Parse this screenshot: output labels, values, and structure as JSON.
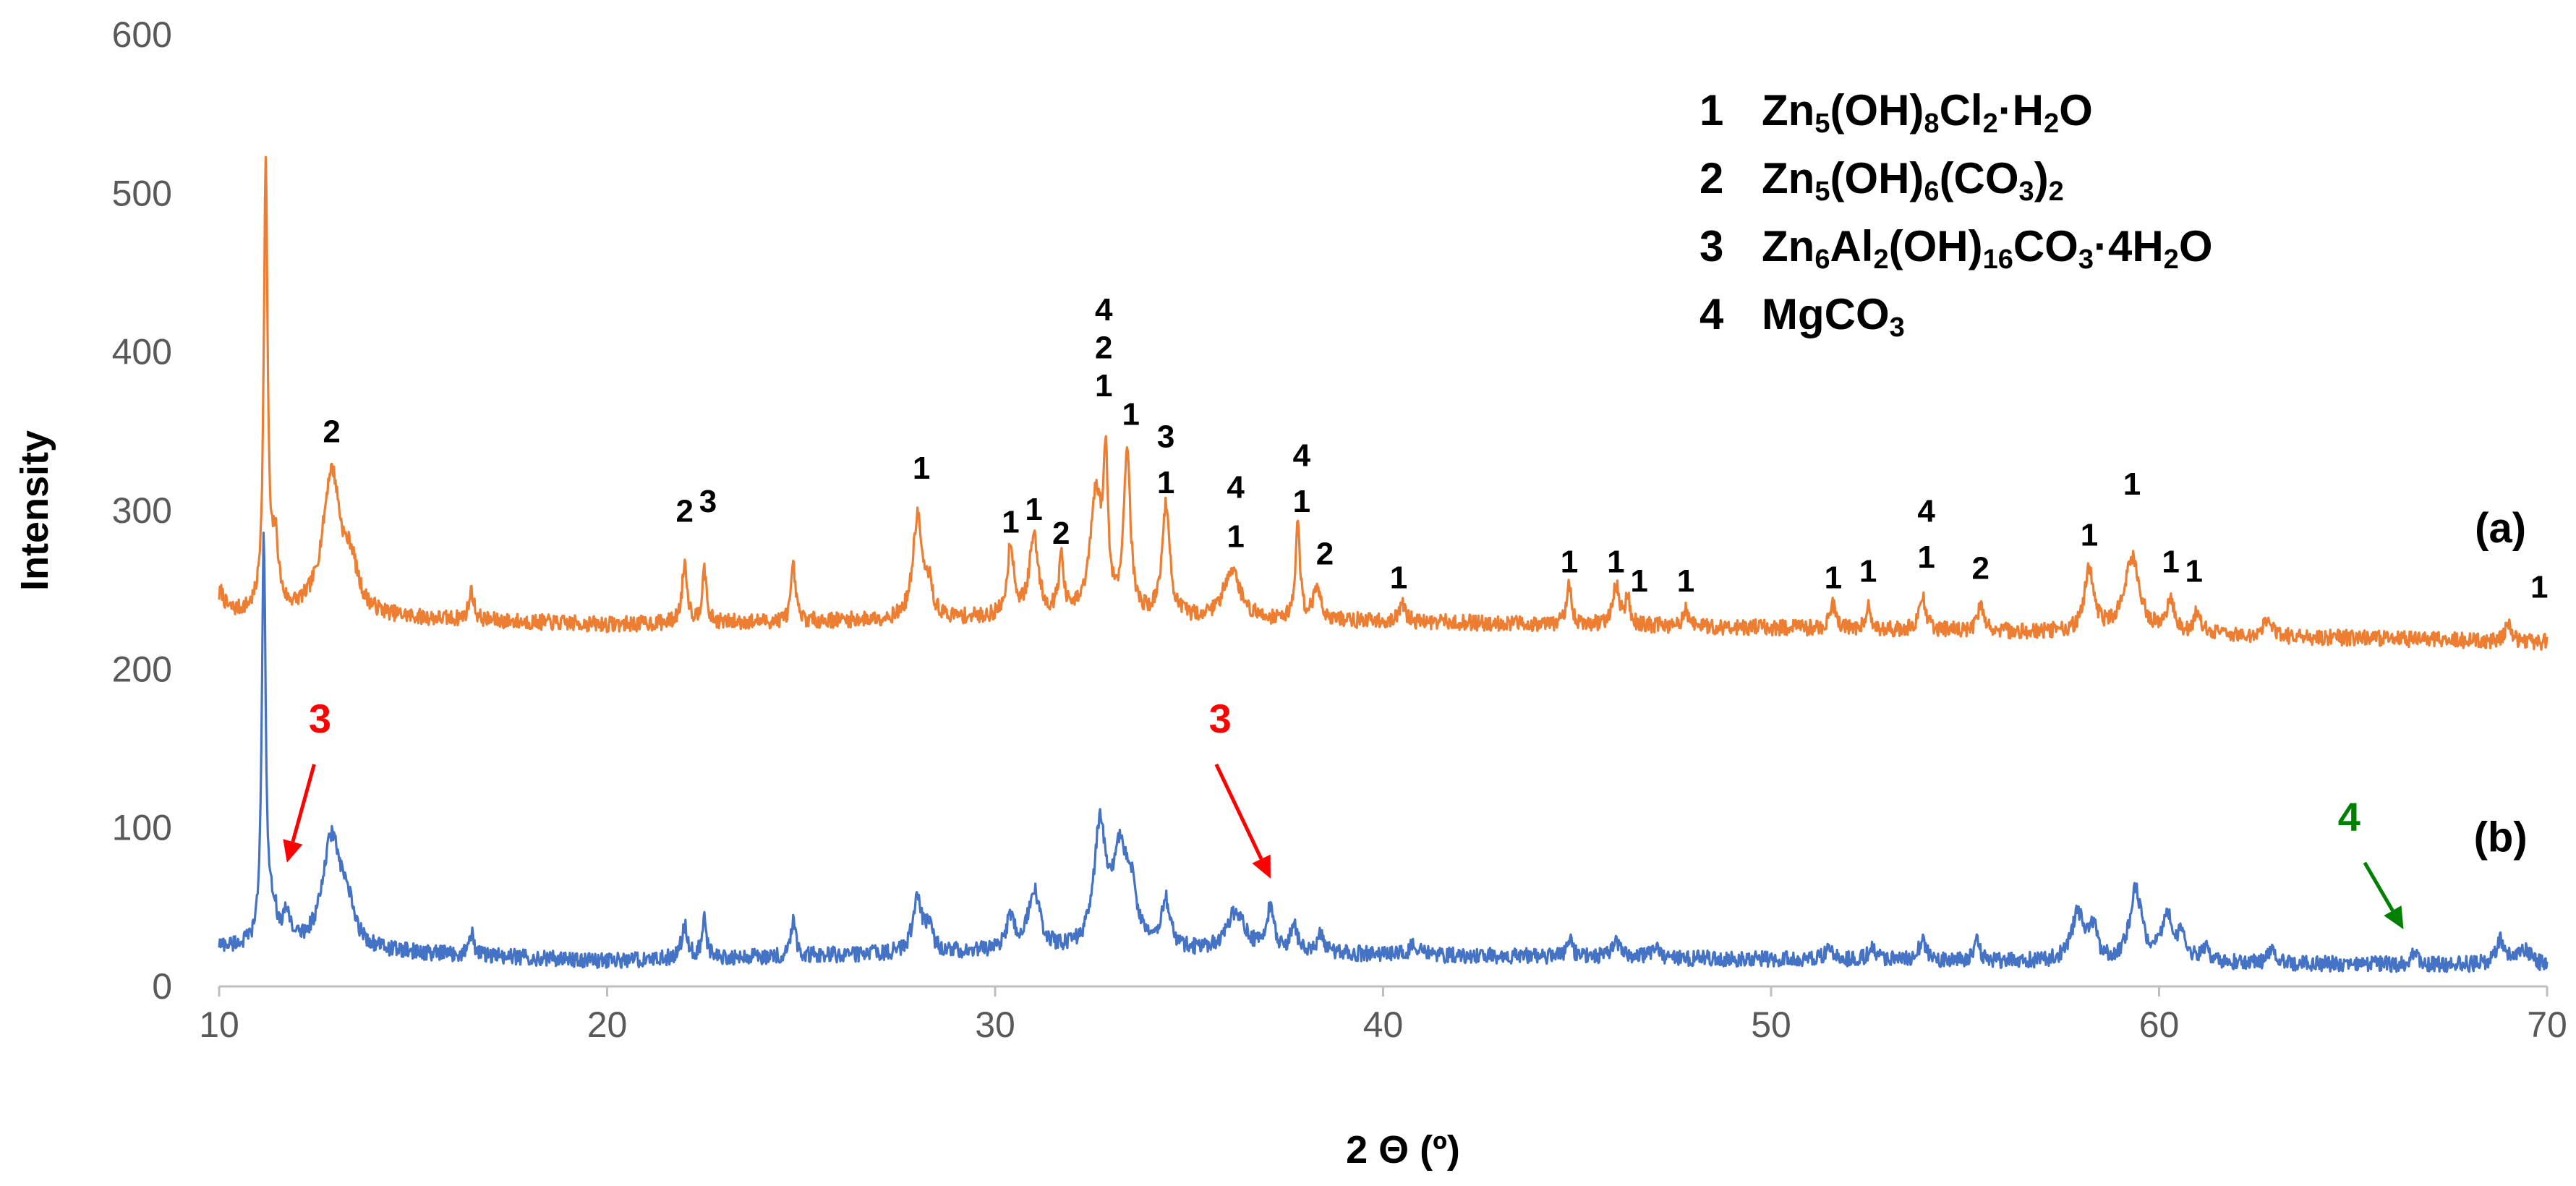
{
  "chart_data": {
    "type": "line",
    "title": "",
    "xlabel": "2 Θ (º)",
    "ylabel": "Intensity",
    "xlim": [
      10,
      70
    ],
    "ylim": [
      0,
      600
    ],
    "x_ticks": [
      "10",
      "20",
      "30",
      "40",
      "50",
      "60",
      "70"
    ],
    "y_ticks": [
      "0",
      "100",
      "200",
      "300",
      "400",
      "500",
      "600"
    ],
    "grid": false,
    "legend": [
      {
        "num": "1",
        "formula": "Zn<sub>5</sub>(OH)<sub>8</sub>Cl<sub>2</sub>·H<sub>2</sub>O",
        "text": "Zn5(OH)8Cl2·H2O"
      },
      {
        "num": "2",
        "formula": "Zn<sub>5</sub>(OH)<sub>6</sub>(CO<sub>3</sub>)<sub>2</sub>",
        "text": "Zn5(OH)6(CO3)2"
      },
      {
        "num": "3",
        "formula": "Zn<sub>6</sub>Al<sub>2</sub>(OH)<sub>16</sub>CO<sub>3</sub>·4H<sub>2</sub>O",
        "text": "Zn6Al2(OH)16CO3·4H2O"
      },
      {
        "num": "4",
        "formula": "MgCO<sub>3</sub>",
        "text": "MgCO3"
      }
    ],
    "series": [
      {
        "name": "(a)",
        "color": "#ED7D31",
        "label_at": [
          68.8,
          280
        ],
        "baseline": [
          [
            10,
            235
          ],
          [
            20,
            228
          ],
          [
            30,
            232
          ],
          [
            40,
            230
          ],
          [
            50,
            226
          ],
          [
            60,
            222
          ],
          [
            70,
            217
          ]
        ],
        "peaks": [
          [
            10.05,
            12,
            0.1
          ],
          [
            11.2,
            278,
            0.06
          ],
          [
            11.45,
            40,
            0.1
          ],
          [
            12.9,
            90,
            0.28
          ],
          [
            13.4,
            25,
            0.2
          ],
          [
            16.5,
            18,
            0.08
          ],
          [
            22.0,
            38,
            0.08
          ],
          [
            22.5,
            36,
            0.06
          ],
          [
            24.8,
            34,
            0.07
          ],
          [
            28.0,
            65,
            0.14
          ],
          [
            28.3,
            18,
            0.1
          ],
          [
            30.4,
            45,
            0.1
          ],
          [
            31.0,
            50,
            0.14
          ],
          [
            31.7,
            35,
            0.08
          ],
          [
            32.6,
            75,
            0.18
          ],
          [
            32.85,
            85,
            0.07
          ],
          [
            33.4,
            105,
            0.1
          ],
          [
            34.4,
            70,
            0.12
          ],
          [
            36.1,
            32,
            0.25
          ],
          [
            37.8,
            60,
            0.07
          ],
          [
            38.3,
            20,
            0.12
          ],
          [
            40.5,
            12,
            0.08
          ],
          [
            44.8,
            25,
            0.07
          ],
          [
            46.0,
            25,
            0.1
          ],
          [
            46.3,
            18,
            0.07
          ],
          [
            47.8,
            12,
            0.07
          ],
          [
            51.6,
            15,
            0.1
          ],
          [
            52.5,
            16,
            0.07
          ],
          [
            53.9,
            22,
            0.1
          ],
          [
            55.4,
            15,
            0.1
          ],
          [
            58.2,
            40,
            0.14
          ],
          [
            59.3,
            48,
            0.24
          ],
          [
            60.3,
            22,
            0.1
          ],
          [
            61.0,
            15,
            0.1
          ],
          [
            62.8,
            12,
            0.1
          ],
          [
            69.0,
            10,
            0.1
          ]
        ],
        "noise": 5
      },
      {
        "name": "(b)",
        "color": "#4472C4",
        "label_at": [
          68.8,
          85
        ],
        "baseline": [
          [
            10,
            25
          ],
          [
            20,
            16
          ],
          [
            30,
            22
          ],
          [
            40,
            20
          ],
          [
            50,
            17
          ],
          [
            60,
            15
          ],
          [
            70,
            13
          ]
        ],
        "peaks": [
          [
            11.15,
            255,
            0.06
          ],
          [
            11.4,
            20,
            0.1
          ],
          [
            11.75,
            18,
            0.12
          ],
          [
            12.9,
            70,
            0.28
          ],
          [
            13.3,
            20,
            0.2
          ],
          [
            16.5,
            14,
            0.08
          ],
          [
            22.0,
            20,
            0.1
          ],
          [
            22.5,
            25,
            0.07
          ],
          [
            24.8,
            25,
            0.07
          ],
          [
            28.0,
            35,
            0.14
          ],
          [
            28.3,
            15,
            0.1
          ],
          [
            30.4,
            20,
            0.12
          ],
          [
            31.0,
            38,
            0.18
          ],
          [
            32.7,
            75,
            0.18
          ],
          [
            33.2,
            55,
            0.2
          ],
          [
            33.5,
            35,
            0.18
          ],
          [
            34.4,
            30,
            0.14
          ],
          [
            36.2,
            25,
            0.3
          ],
          [
            37.1,
            28,
            0.1
          ],
          [
            37.7,
            18,
            0.1
          ],
          [
            38.4,
            12,
            0.1
          ],
          [
            40.8,
            8,
            0.1
          ],
          [
            44.8,
            12,
            0.08
          ],
          [
            46.0,
            12,
            0.1
          ],
          [
            47.0,
            8,
            0.1
          ],
          [
            51.5,
            10,
            0.1
          ],
          [
            52.6,
            10,
            0.1
          ],
          [
            53.9,
            14,
            0.1
          ],
          [
            55.3,
            12,
            0.1
          ],
          [
            57.9,
            30,
            0.18
          ],
          [
            58.3,
            20,
            0.12
          ],
          [
            59.4,
            45,
            0.18
          ],
          [
            60.2,
            30,
            0.15
          ],
          [
            60.6,
            18,
            0.12
          ],
          [
            61.2,
            10,
            0.1
          ],
          [
            62.9,
            8,
            0.1
          ],
          [
            66.6,
            10,
            0.08
          ],
          [
            68.8,
            15,
            0.15
          ],
          [
            69.4,
            10,
            0.2
          ]
        ],
        "noise": 5
      }
    ],
    "peak_labels": [
      {
        "x": 12.9,
        "y": 343,
        "text": "2"
      },
      {
        "x": 22.0,
        "y": 293,
        "text": "2"
      },
      {
        "x": 22.6,
        "y": 299,
        "text": "3"
      },
      {
        "x": 28.1,
        "y": 320,
        "text": "1"
      },
      {
        "x": 30.4,
        "y": 286,
        "text": "1"
      },
      {
        "x": 31.0,
        "y": 294,
        "text": "1"
      },
      {
        "x": 31.7,
        "y": 279,
        "text": "2"
      },
      {
        "x": 32.8,
        "y": 420,
        "text": "4"
      },
      {
        "x": 32.8,
        "y": 396,
        "text": "2"
      },
      {
        "x": 32.8,
        "y": 372,
        "text": "1"
      },
      {
        "x": 33.5,
        "y": 354,
        "text": "1"
      },
      {
        "x": 34.4,
        "y": 340,
        "text": "3"
      },
      {
        "x": 34.4,
        "y": 311,
        "text": "1"
      },
      {
        "x": 36.2,
        "y": 308,
        "text": "4"
      },
      {
        "x": 36.2,
        "y": 277,
        "text": "1"
      },
      {
        "x": 37.9,
        "y": 328,
        "text": "4"
      },
      {
        "x": 37.9,
        "y": 299,
        "text": "1"
      },
      {
        "x": 38.5,
        "y": 266,
        "text": "2"
      },
      {
        "x": 40.4,
        "y": 251,
        "text": "1"
      },
      {
        "x": 44.8,
        "y": 261,
        "text": "1"
      },
      {
        "x": 46.0,
        "y": 261,
        "text": "1"
      },
      {
        "x": 46.6,
        "y": 249,
        "text": "1"
      },
      {
        "x": 47.8,
        "y": 249,
        "text": "1"
      },
      {
        "x": 51.6,
        "y": 251,
        "text": "1"
      },
      {
        "x": 52.5,
        "y": 255,
        "text": "1"
      },
      {
        "x": 54.0,
        "y": 293,
        "text": "4"
      },
      {
        "x": 54.0,
        "y": 264,
        "text": "1"
      },
      {
        "x": 55.4,
        "y": 257,
        "text": "2"
      },
      {
        "x": 58.2,
        "y": 278,
        "text": "1"
      },
      {
        "x": 59.3,
        "y": 310,
        "text": "1"
      },
      {
        "x": 60.3,
        "y": 261,
        "text": "1"
      },
      {
        "x": 60.9,
        "y": 255,
        "text": "1"
      },
      {
        "x": 69.8,
        "y": 245,
        "text": "1"
      }
    ],
    "annotations": [
      {
        "text": "3",
        "color": "#FF0000",
        "text_at": [
          12.6,
          160
        ],
        "from": [
          12.45,
          140
        ],
        "to": [
          11.75,
          78
        ]
      },
      {
        "text": "3",
        "color": "#FF0000",
        "text_at": [
          35.8,
          160
        ],
        "from": [
          35.7,
          140
        ],
        "to": [
          37.1,
          68
        ]
      },
      {
        "text": "4",
        "color": "#008000",
        "text_at": [
          64.9,
          98
        ],
        "from": [
          65.3,
          78
        ],
        "to": [
          66.3,
          36
        ]
      }
    ]
  }
}
